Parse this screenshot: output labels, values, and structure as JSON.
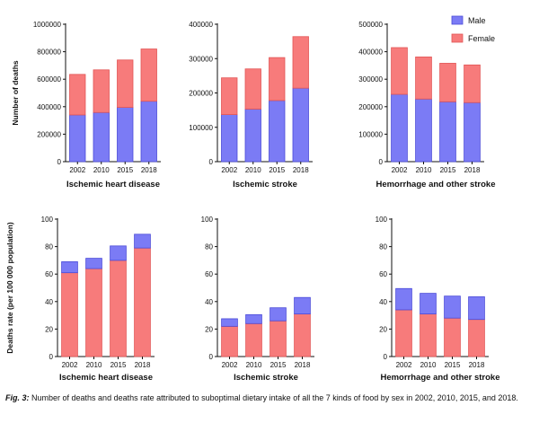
{
  "colors": {
    "male": "#7b7bf5",
    "female": "#f77b7b",
    "male_edge": "#4b4bd8",
    "female_edge": "#e25555"
  },
  "legend": {
    "male": "Male",
    "female": "Female"
  },
  "caption": {
    "label": "Fig. 3:",
    "text": "Number of deaths and deaths rate attributed to suboptimal dietary intake of all the 7 kinds of food by sex in 2002, 2010, 2015, and 2018."
  },
  "chart_data": [
    {
      "type": "bar",
      "stacked": true,
      "title": "Ischemic heart disease",
      "ylabel": "Number of deaths",
      "categories": [
        "2002",
        "2010",
        "2015",
        "2018"
      ],
      "ylim": [
        0,
        1000000
      ],
      "yticks": [
        {
          "v": 0,
          "t": "0"
        },
        {
          "v": 200000,
          "t": "200000"
        },
        {
          "v": 400000,
          "t": "400000"
        },
        {
          "v": 600000,
          "t": "600000"
        },
        {
          "v": 800000,
          "t": "800000"
        },
        {
          "v": 1000000,
          "t": "1000000"
        }
      ],
      "series": [
        {
          "name": "Male",
          "values": [
            340000,
            358000,
            395000,
            440000
          ]
        },
        {
          "name": "Female",
          "values": [
            295000,
            310000,
            345000,
            380000
          ]
        }
      ]
    },
    {
      "type": "bar",
      "stacked": true,
      "title": "Ischemic stroke",
      "ylabel": "",
      "categories": [
        "2002",
        "2010",
        "2015",
        "2018"
      ],
      "ylim": [
        0,
        400000
      ],
      "yticks": [
        {
          "v": 0,
          "t": "0"
        },
        {
          "v": 100000,
          "t": "100000"
        },
        {
          "v": 200000,
          "t": "200000"
        },
        {
          "v": 300000,
          "t": "300000"
        },
        {
          "v": 400000,
          "t": "400000"
        }
      ],
      "series": [
        {
          "name": "Male",
          "values": [
            137000,
            153000,
            178000,
            214000
          ]
        },
        {
          "name": "Female",
          "values": [
            107000,
            117000,
            125000,
            150000
          ]
        }
      ]
    },
    {
      "type": "bar",
      "stacked": true,
      "title": "Hemorrhage and other stroke",
      "ylabel": "",
      "categories": [
        "2002",
        "2010",
        "2015",
        "2018"
      ],
      "ylim": [
        0,
        500000
      ],
      "yticks": [
        {
          "v": 0,
          "t": "0"
        },
        {
          "v": 100000,
          "t": "100000"
        },
        {
          "v": 200000,
          "t": "200000"
        },
        {
          "v": 300000,
          "t": "300000"
        },
        {
          "v": 400000,
          "t": "400000"
        },
        {
          "v": 500000,
          "t": "500000"
        }
      ],
      "series": [
        {
          "name": "Male",
          "values": [
            245000,
            228000,
            218000,
            215000
          ]
        },
        {
          "name": "Female",
          "values": [
            170000,
            153000,
            140000,
            137000
          ]
        }
      ]
    },
    {
      "type": "bar",
      "stacked": true,
      "title": "Ischemic heart disease",
      "ylabel": "Deaths rate (per 100 000 population)",
      "categories": [
        "2002",
        "2010",
        "2015",
        "2018"
      ],
      "ylim": [
        0,
        100
      ],
      "yticks": [
        {
          "v": 0,
          "t": "0"
        },
        {
          "v": 20,
          "t": "20"
        },
        {
          "v": 40,
          "t": "40"
        },
        {
          "v": 60,
          "t": "60"
        },
        {
          "v": 80,
          "t": "80"
        },
        {
          "v": 100,
          "t": "100"
        }
      ],
      "series": [
        {
          "name": "Female",
          "values": [
            61,
            64,
            70,
            79
          ]
        },
        {
          "name": "Male",
          "values": [
            8,
            7.5,
            10.5,
            10
          ]
        }
      ]
    },
    {
      "type": "bar",
      "stacked": true,
      "title": "Ischemic stroke",
      "ylabel": "",
      "categories": [
        "2002",
        "2010",
        "2015",
        "2018"
      ],
      "ylim": [
        0,
        100
      ],
      "yticks": [
        {
          "v": 0,
          "t": "0"
        },
        {
          "v": 20,
          "t": "20"
        },
        {
          "v": 40,
          "t": "40"
        },
        {
          "v": 60,
          "t": "60"
        },
        {
          "v": 80,
          "t": "80"
        },
        {
          "v": 100,
          "t": "100"
        }
      ],
      "series": [
        {
          "name": "Female",
          "values": [
            22,
            24,
            26,
            31
          ]
        },
        {
          "name": "Male",
          "values": [
            5.5,
            6.5,
            9.5,
            12
          ]
        }
      ]
    },
    {
      "type": "bar",
      "stacked": true,
      "title": "Hemorrhage and other stroke",
      "ylabel": "",
      "categories": [
        "2002",
        "2010",
        "2015",
        "2018"
      ],
      "ylim": [
        0,
        100
      ],
      "yticks": [
        {
          "v": 0,
          "t": "0"
        },
        {
          "v": 20,
          "t": "20"
        },
        {
          "v": 40,
          "t": "40"
        },
        {
          "v": 60,
          "t": "60"
        },
        {
          "v": 80,
          "t": "80"
        },
        {
          "v": 100,
          "t": "100"
        }
      ],
      "series": [
        {
          "name": "Female",
          "values": [
            34,
            31,
            28,
            27
          ]
        },
        {
          "name": "Male",
          "values": [
            15.5,
            15,
            16,
            16.5
          ]
        }
      ]
    }
  ]
}
